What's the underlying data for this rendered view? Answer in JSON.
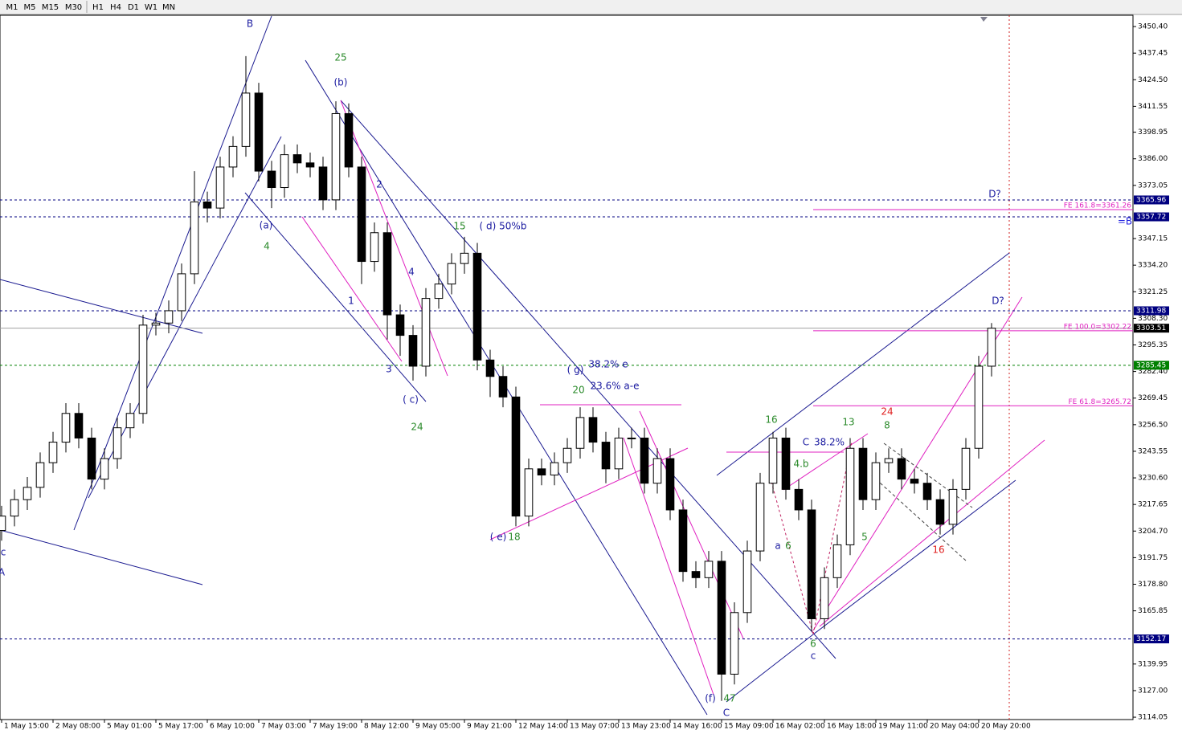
{
  "toolbar": [
    "M1",
    "M5",
    "M15",
    "M30",
    "H1",
    "H4",
    "D1",
    "W1",
    "MN"
  ],
  "chart_data": {
    "type": "candlestick",
    "open": [
      3205,
      3212,
      3220,
      3226,
      3238,
      3248,
      3262,
      3250,
      3230,
      3240,
      3255,
      3262,
      3305,
      3306,
      3312,
      3330,
      3365,
      3362,
      3382,
      3392,
      3418,
      3380,
      3372,
      3388,
      3384,
      3382,
      3366,
      3408,
      3382,
      3336,
      3350,
      3310,
      3300,
      3285,
      3318,
      3325,
      3335,
      3340,
      3288,
      3280,
      3270,
      3212,
      3235,
      3232,
      3238,
      3245,
      3260,
      3248,
      3235,
      3250,
      3250,
      3228,
      3240,
      3215,
      3185,
      3182,
      3190,
      3135,
      3165,
      3195,
      3228,
      3250,
      3225,
      3215,
      3162,
      3182,
      3198,
      3245,
      3220,
      3238,
      3240,
      3230,
      3228,
      3220,
      3208,
      3225,
      3245,
      3285
    ],
    "high": [
      3217,
      3225,
      3231,
      3243,
      3253,
      3267,
      3267,
      3255,
      3245,
      3260,
      3267,
      3310,
      3311,
      3317,
      3335,
      3380,
      3370,
      3387,
      3397,
      3436,
      3423,
      3385,
      3393,
      3393,
      3389,
      3387,
      3414,
      3413,
      3387,
      3355,
      3355,
      3315,
      3305,
      3323,
      3330,
      3340,
      3348,
      3345,
      3293,
      3285,
      3275,
      3240,
      3240,
      3243,
      3250,
      3265,
      3265,
      3253,
      3255,
      3255,
      3255,
      3245,
      3245,
      3220,
      3190,
      3195,
      3195,
      3170,
      3200,
      3233,
      3253,
      3255,
      3230,
      3220,
      3187,
      3203,
      3250,
      3250,
      3243,
      3245,
      3245,
      3235,
      3233,
      3225,
      3230,
      3250,
      3290,
      3306
    ],
    "low": [
      3200,
      3207,
      3215,
      3221,
      3233,
      3243,
      3245,
      3225,
      3225,
      3235,
      3250,
      3257,
      3300,
      3301,
      3307,
      3325,
      3355,
      3357,
      3377,
      3387,
      3375,
      3362,
      3367,
      3379,
      3377,
      3361,
      3361,
      3377,
      3325,
      3331,
      3298,
      3290,
      3278,
      3280,
      3313,
      3320,
      3330,
      3283,
      3270,
      3265,
      3207,
      3207,
      3227,
      3227,
      3233,
      3240,
      3243,
      3228,
      3230,
      3245,
      3223,
      3223,
      3210,
      3180,
      3177,
      3177,
      3122,
      3130,
      3160,
      3190,
      3223,
      3220,
      3210,
      3156,
      3157,
      3177,
      3193,
      3215,
      3215,
      3233,
      3225,
      3223,
      3215,
      3203,
      3203,
      3220,
      3240,
      3280
    ],
    "close": [
      3212,
      3220,
      3226,
      3238,
      3248,
      3262,
      3250,
      3230,
      3240,
      3255,
      3262,
      3305,
      3306,
      3312,
      3330,
      3365,
      3362,
      3382,
      3392,
      3418,
      3380,
      3372,
      3388,
      3384,
      3382,
      3366,
      3408,
      3382,
      3336,
      3350,
      3310,
      3300,
      3285,
      3318,
      3325,
      3335,
      3340,
      3288,
      3280,
      3270,
      3212,
      3235,
      3232,
      3238,
      3245,
      3260,
      3248,
      3235,
      3250,
      3250,
      3228,
      3240,
      3215,
      3185,
      3182,
      3190,
      3135,
      3165,
      3195,
      3228,
      3250,
      3225,
      3215,
      3162,
      3182,
      3198,
      3245,
      3220,
      3238,
      3240,
      3230,
      3228,
      3220,
      3208,
      3225,
      3245,
      3285,
      3303.51
    ],
    "xticks": [
      {
        "value": 0,
        "label": "1 May 15:00"
      },
      {
        "value": 4,
        "label": "2 May 08:00"
      },
      {
        "value": 8,
        "label": "5 May 01:00"
      },
      {
        "value": 12,
        "label": "5 May 17:00"
      },
      {
        "value": 16,
        "label": "6 May 10:00"
      },
      {
        "value": 20,
        "label": "7 May 03:00"
      },
      {
        "value": 24,
        "label": "7 May 19:00"
      },
      {
        "value": 28,
        "label": "8 May 12:00"
      },
      {
        "value": 32,
        "label": "9 May 05:00"
      },
      {
        "value": 36,
        "label": "9 May 21:00"
      },
      {
        "value": 40,
        "label": "12 May 14:00"
      },
      {
        "value": 44,
        "label": "13 May 07:00"
      },
      {
        "value": 48,
        "label": "13 May 23:00"
      },
      {
        "value": 52,
        "label": "14 May 16:00"
      },
      {
        "value": 56,
        "label": "15 May 09:00"
      },
      {
        "value": 60,
        "label": "16 May 02:00"
      },
      {
        "value": 64,
        "label": "16 May 18:00"
      },
      {
        "value": 68,
        "label": "19 May 11:00"
      },
      {
        "value": 72,
        "label": "20 May 04:00"
      },
      {
        "value": 76,
        "label": "20 May 20:00"
      }
    ],
    "xlim": [
      -0.125,
      88
    ],
    "ylim": [
      3112.9,
      3455.9
    ],
    "yticks": [
      {
        "value": 3450.4,
        "label": "3450.40"
      },
      3437.45,
      {
        "value": 3424.5,
        "label": "3424.50"
      },
      3411.55,
      3398.95,
      {
        "value": 3386,
        "label": "3386.00"
      },
      3373.05,
      3347.15,
      {
        "value": 3334.2,
        "label": "3334.20"
      },
      3321.25,
      {
        "value": 3308.3,
        "label": "3308.30"
      },
      3295.35,
      {
        "value": 3282.4,
        "label": "3282.40"
      },
      3269.45,
      {
        "value": 3256.5,
        "label": "3256.50"
      },
      3243.55,
      {
        "value": 3230.6,
        "label": "3230.60"
      },
      3217.65,
      {
        "value": 3204.7,
        "label": "3204.70"
      },
      3191.75,
      {
        "value": 3178.8,
        "label": "3178.80"
      },
      3165.85,
      3139.95,
      {
        "value": 3127,
        "label": "3127.00"
      },
      3114.05
    ],
    "levels": [
      {
        "price": 3365.96,
        "color": "#000080",
        "style": "dash"
      },
      {
        "price": 3357.72,
        "color": "#000080",
        "style": "dash"
      },
      {
        "price": 3311.98,
        "color": "#000080",
        "style": "dash"
      },
      {
        "price": 3303.51,
        "color": "#000000",
        "style": "solid"
      },
      {
        "price": 3285.45,
        "color": "#008000",
        "style": "dash"
      },
      {
        "price": 3152.17,
        "color": "#000080",
        "style": "dash"
      }
    ],
    "fib_levels": [
      {
        "label": "FE 161.8=3361.26",
        "price": 3361.26
      },
      {
        "label": "FE 100.0=3302.22",
        "price": 3302.22
      },
      {
        "label": "FE 61.8=3265.72",
        "price": 3265.72
      }
    ],
    "fib_color": "#e020c0",
    "annotations": [
      {
        "text": "B",
        "color": "#1a1aa0"
      },
      {
        "text": "25",
        "color": "#2a8a2a"
      },
      {
        "text": "(b)",
        "color": "#1a1aa0"
      },
      {
        "text": "2",
        "color": "#1a1aa0"
      },
      {
        "text": "(a)",
        "color": "#1a1aa0"
      },
      {
        "text": "4",
        "color": "#2a8a2a"
      },
      {
        "text": "15",
        "color": "#2a8a2a"
      },
      {
        "text": "( d) 50%b",
        "color": "#1a1aa0"
      },
      {
        "text": "1",
        "color": "#1a1aa0"
      },
      {
        "text": "4",
        "color": "#1a1aa0"
      },
      {
        "text": "3",
        "color": "#1a1aa0"
      },
      {
        "text": "( c)",
        "color": "#1a1aa0"
      },
      {
        "text": "24",
        "color": "#2a8a2a"
      },
      {
        "text": "( g)",
        "color": "#1a1aa0"
      },
      {
        "text": "38.2% e",
        "color": "#1a1aa0"
      },
      {
        "text": "23.6% a-e",
        "color": "#1a1aa0"
      },
      {
        "text": "20",
        "color": "#2a8a2a"
      },
      {
        "text": "( e)",
        "color": "#1a1aa0"
      },
      {
        "text": "18",
        "color": "#2a8a2a"
      },
      {
        "text": "16",
        "color": "#2a8a2a"
      },
      {
        "text": "13",
        "color": "#2a8a2a"
      },
      {
        "text": "24",
        "color": "#e02020"
      },
      {
        "text": "8",
        "color": "#2a8a2a"
      },
      {
        "text": "C",
        "color": "#1a1aa0"
      },
      {
        "text": "38.2%",
        "color": "#1a1aa0"
      },
      {
        "text": "4.b",
        "color": "#2a8a2a"
      },
      {
        "text": "a",
        "color": "#1a1aa0"
      },
      {
        "text": "6",
        "color": "#2a8a2a"
      },
      {
        "text": "5",
        "color": "#2a8a2a"
      },
      {
        "text": "16",
        "color": "#e02020"
      },
      {
        "text": "6",
        "color": "#2a8a2a"
      },
      {
        "text": "c",
        "color": "#1a1aa0"
      },
      {
        "text": "(f)",
        "color": "#1a1aa0"
      },
      {
        "text": "47",
        "color": "#2a8a2a"
      },
      {
        "text": "C",
        "color": "#1a1aa0"
      },
      {
        "text": "c",
        "color": "#1a1aa0"
      },
      {
        "text": "A",
        "color": "#1a1aa0"
      },
      {
        "text": "D?",
        "color": "#1a1aa0"
      },
      {
        "text": "D?",
        "color": "#1a1aa0"
      },
      {
        "text": "=B",
        "color": "#2020e0"
      }
    ]
  }
}
